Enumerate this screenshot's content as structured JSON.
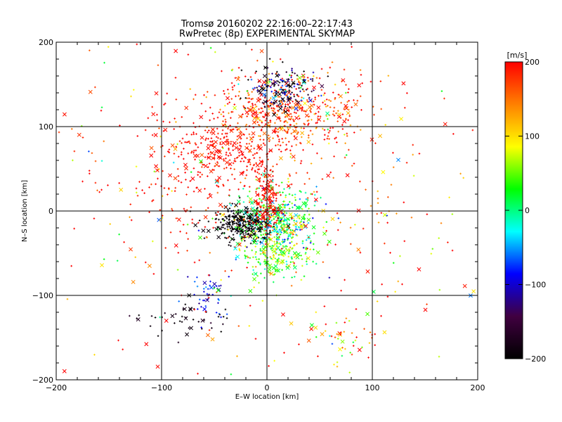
{
  "chart_data": {
    "type": "scatter",
    "title_line1": "Tromsø 20160202 22:16:00–22:17:43",
    "title_line2": "RwPretec (8p) EXPERIMENTAL SKYMAP",
    "xlabel": "E–W location [km]",
    "ylabel": "N–S location [km]",
    "xlim": [
      -200,
      200
    ],
    "ylim": [
      -200,
      200
    ],
    "x_ticks": [
      -200,
      -100,
      0,
      100,
      200
    ],
    "y_ticks": [
      -200,
      -100,
      0,
      100,
      200
    ],
    "x_tick_labels": [
      "−200",
      "−100",
      "0",
      "100",
      "200"
    ],
    "y_tick_labels": [
      "−200",
      "−100",
      "0",
      "100",
      "200"
    ],
    "grid": true,
    "marker_types": [
      "plus",
      "cross"
    ],
    "colorbar": {
      "label": "[m/s]",
      "min": -200,
      "max": 200,
      "ticks": [
        -200,
        -100,
        0,
        100,
        200
      ],
      "tick_labels": [
        "−200",
        "−100",
        "0",
        "100",
        "200"
      ],
      "colormap": [
        "#000000",
        "#400040",
        "#0000ff",
        "#00ffff",
        "#00ff00",
        "#ffff00",
        "#ff8000",
        "#ff0000"
      ]
    },
    "clusters": [
      {
        "x": 5,
        "y": -15,
        "sx": 20,
        "sy": 20,
        "n": 520,
        "vmean": 20,
        "vspread": 60
      },
      {
        "x": -25,
        "y": -15,
        "sx": 14,
        "sy": 10,
        "n": 260,
        "vmean": -195,
        "vspread": 8
      },
      {
        "x": 0,
        "y": 15,
        "sx": 6,
        "sy": 20,
        "n": 150,
        "vmean": 195,
        "vspread": 10
      },
      {
        "x": 20,
        "y": 115,
        "sx": 35,
        "sy": 25,
        "n": 480,
        "vmean": 175,
        "vspread": 40
      },
      {
        "x": 15,
        "y": 145,
        "sx": 14,
        "sy": 12,
        "n": 170,
        "vmean": -150,
        "vspread": 80
      },
      {
        "x": 10,
        "y": -55,
        "sx": 15,
        "sy": 12,
        "n": 150,
        "vmean": 40,
        "vspread": 40
      },
      {
        "x": -40,
        "y": 75,
        "sx": 20,
        "sy": 16,
        "n": 180,
        "vmean": 195,
        "vspread": 15
      },
      {
        "x": -50,
        "y": 50,
        "sx": 45,
        "sy": 45,
        "n": 220,
        "vmean": 195,
        "vspread": 10
      },
      {
        "x": -55,
        "y": -100,
        "sx": 10,
        "sy": 14,
        "n": 45,
        "vmean": -85,
        "vspread": 25
      },
      {
        "x": -80,
        "y": -130,
        "sx": 25,
        "sy": 15,
        "n": 45,
        "vmean": -190,
        "vspread": 15
      },
      {
        "x": 80,
        "y": -150,
        "sx": 25,
        "sy": 15,
        "n": 45,
        "vmean": 150,
        "vspread": 80
      },
      {
        "x": 0,
        "y": 0,
        "sx": 130,
        "sy": 120,
        "n": 480,
        "vmean": 150,
        "vspread": 90
      }
    ]
  }
}
